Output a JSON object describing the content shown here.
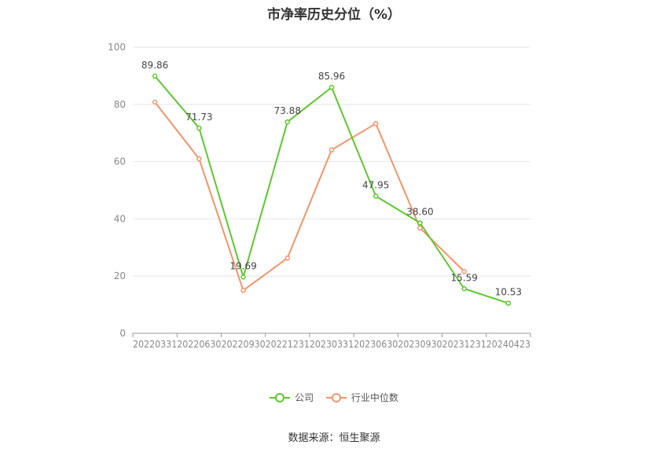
{
  "chart_data": {
    "type": "line",
    "title": "市净率历史分位（%）",
    "categories": [
      "20220331",
      "20220630",
      "20220930",
      "20221231",
      "20230331",
      "20230630",
      "20230930",
      "20231231",
      "20240423"
    ],
    "ylim": [
      0,
      100
    ],
    "yticks": [
      0,
      20,
      40,
      60,
      80,
      100
    ],
    "grid": true,
    "legend_position": "bottom",
    "series": [
      {
        "name": "公司",
        "color": "#5ec72e",
        "values": [
          89.86,
          71.73,
          19.69,
          73.88,
          85.96,
          47.95,
          38.6,
          15.59,
          10.53
        ],
        "labels": [
          "89.86",
          "71.73",
          "19.69",
          "73.88",
          "85.96",
          "47.95",
          "38.60",
          "15.59",
          "10.53"
        ]
      },
      {
        "name": "行业中位数",
        "color": "#f0956a",
        "values": [
          80.8,
          61.0,
          15.0,
          26.3,
          64.1,
          73.3,
          36.8,
          21.6,
          null
        ]
      }
    ],
    "source": "数据来源：恒生聚源"
  }
}
